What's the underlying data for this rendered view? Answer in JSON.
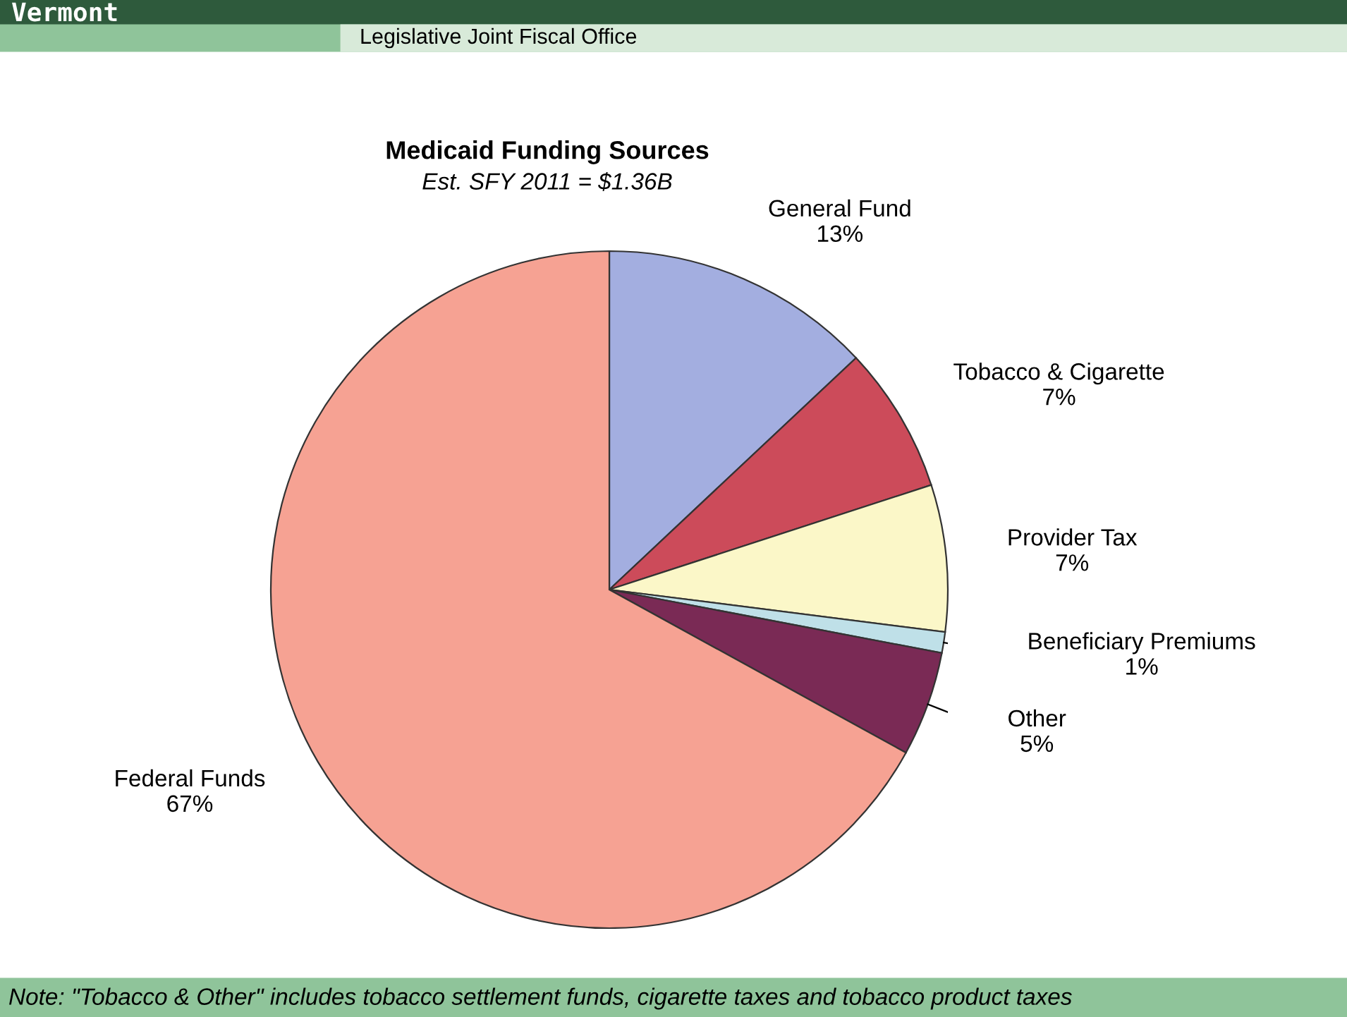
{
  "chart_data": {
    "type": "pie",
    "title": "Medicaid Funding Sources",
    "subtitle": "Est. SFY 2011 = $1.36B",
    "categories": [
      "General Fund",
      "Tobacco & Cigarette",
      "Provider Tax",
      "Beneficiary Premiums",
      "Other",
      "Federal Funds"
    ],
    "values": [
      13,
      7,
      7,
      1,
      5,
      67
    ],
    "value_labels": [
      "13%",
      "7%",
      "7%",
      "1%",
      "5%",
      "67%"
    ],
    "colors": [
      "#a3aee0",
      "#cc4b5a",
      "#fbf7c8",
      "#bfe0e8",
      "#7a2a55",
      "#f6a293"
    ],
    "annotations": [
      "Vermont",
      "Legislative Joint Fiscal Office",
      "Note: \"Tobacco & Other\" includes tobacco settlement funds, cigarette taxes and tobacco product taxes"
    ],
    "legend": false
  }
}
